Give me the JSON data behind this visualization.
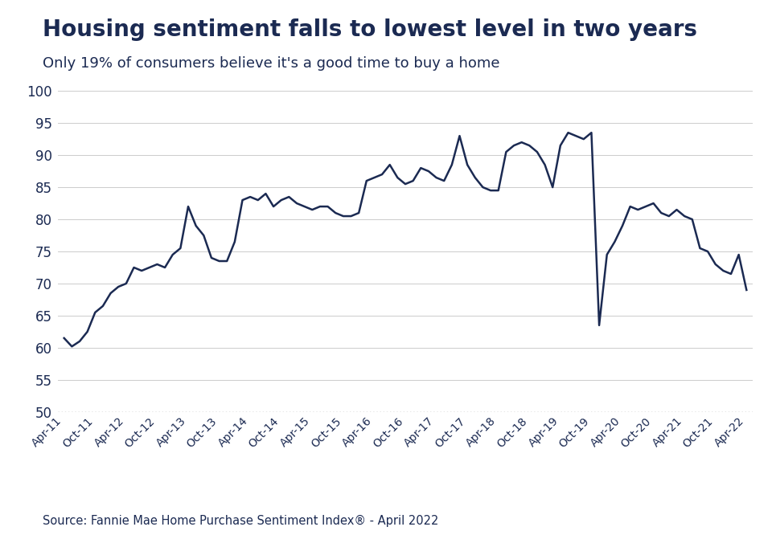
{
  "title": "Housing sentiment falls to lowest level in two years",
  "subtitle": "Only 19% of consumers believe it's a good time to buy a home",
  "source": "Source: Fannie Mae Home Purchase Sentiment Index® - April 2022",
  "line_color": "#1b2a52",
  "background_color": "#ffffff",
  "grid_color": "#cccccc",
  "dotted_line_color": "#888888",
  "dotted_line_y": 50,
  "ylim": [
    50,
    100
  ],
  "yticks": [
    50,
    55,
    60,
    65,
    70,
    75,
    80,
    85,
    90,
    95,
    100
  ],
  "xtick_labels": [
    "Apr-11",
    "Oct-11",
    "Apr-12",
    "Oct-12",
    "Apr-13",
    "Oct-13",
    "Apr-14",
    "Oct-14",
    "Apr-15",
    "Oct-15",
    "Apr-16",
    "Oct-16",
    "Apr-17",
    "Oct-17",
    "Apr-18",
    "Oct-18",
    "Apr-19",
    "Oct-19",
    "Apr-20",
    "Oct-20",
    "Apr-21",
    "Oct-21",
    "Apr-22"
  ],
  "values": [
    61.5,
    60.2,
    61.0,
    62.5,
    65.5,
    66.5,
    68.5,
    69.5,
    70.0,
    72.5,
    72.0,
    72.5,
    73.0,
    72.5,
    74.5,
    75.5,
    82.0,
    79.0,
    77.5,
    74.0,
    73.5,
    73.5,
    76.5,
    83.0,
    83.5,
    83.0,
    84.0,
    82.0,
    83.0,
    83.5,
    82.5,
    82.0,
    81.5,
    82.0,
    82.0,
    81.0,
    80.5,
    80.5,
    81.0,
    86.0,
    86.5,
    87.0,
    88.5,
    86.5,
    85.5,
    86.0,
    88.0,
    87.5,
    86.5,
    86.0,
    88.5,
    93.0,
    88.5,
    86.5,
    85.0,
    84.5,
    84.5,
    90.5,
    91.5,
    92.0,
    91.5,
    90.5,
    88.5,
    85.0,
    91.5,
    93.5,
    93.0,
    92.5,
    93.5,
    63.5,
    74.5,
    76.5,
    79.0,
    82.0,
    81.5,
    82.0,
    82.5,
    81.0,
    80.5,
    81.5,
    80.5,
    80.0,
    75.5,
    75.0,
    73.0,
    72.0,
    71.5,
    74.5,
    69.0
  ]
}
